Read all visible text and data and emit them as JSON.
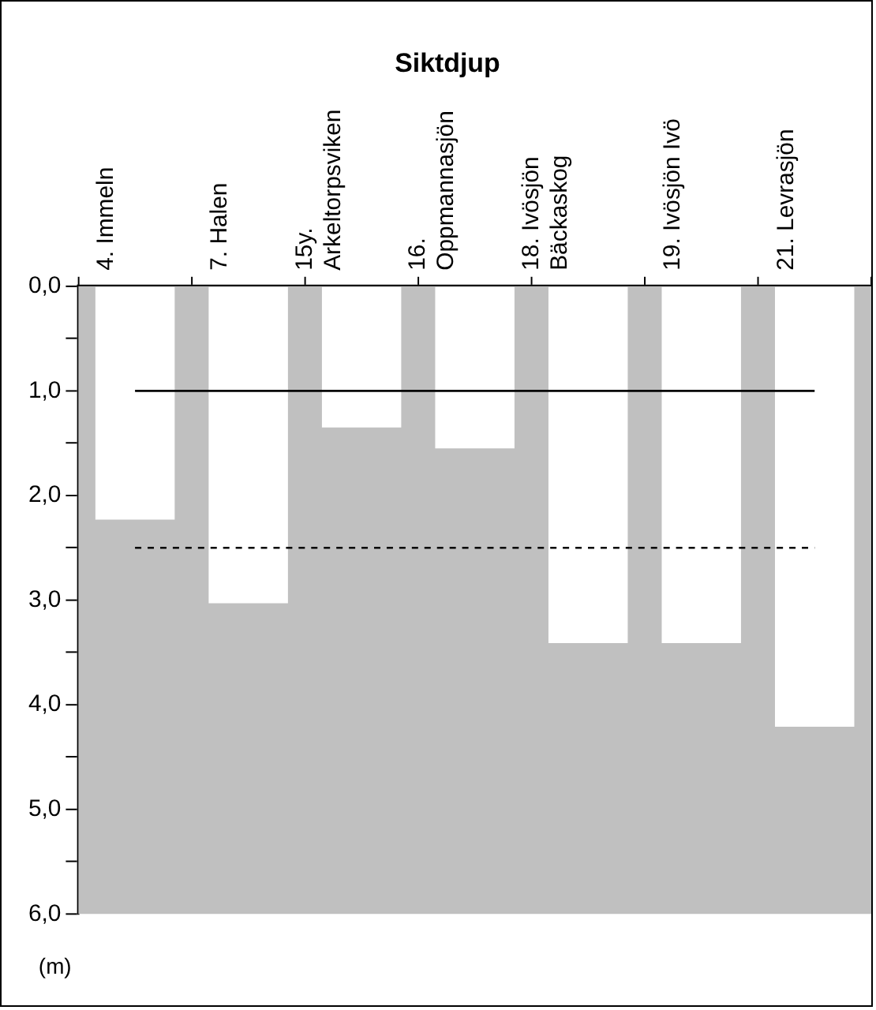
{
  "chart_data": {
    "type": "bar",
    "title": "Siktdjup",
    "ylabel": "(m)",
    "categories": [
      "4. Immeln",
      "7. Halen",
      "15y. Arkeltorpsviken",
      "16. Oppmannasjön",
      "18. Ivösjön Bäckaskog",
      "19. Ivösjön Ivö",
      "21. Levrasjön"
    ],
    "values": [
      2.23,
      3.03,
      1.35,
      1.55,
      3.41,
      3.41,
      4.21
    ],
    "color": "#ffffff",
    "ylim": [
      6,
      0
    ],
    "yticks": [
      {
        "value": 0,
        "label": "0,0"
      },
      {
        "value": 0.5,
        "label": null
      },
      {
        "value": 1,
        "label": "1,0"
      },
      {
        "value": 1.5,
        "label": null
      },
      {
        "value": 2,
        "label": "2,0"
      },
      {
        "value": 2.5,
        "label": null
      },
      {
        "value": 3,
        "label": "3,0"
      },
      {
        "value": 3.5,
        "label": null
      },
      {
        "value": 4,
        "label": "4,0"
      },
      {
        "value": 4.5,
        "label": null
      },
      {
        "value": 5,
        "label": "5,0"
      },
      {
        "value": 5.5,
        "label": null
      },
      {
        "value": 6,
        "label": "6,0"
      }
    ],
    "ref_lines": [
      {
        "axis": "y",
        "value": 1,
        "color": "#000000",
        "line_style": "solid"
      },
      {
        "axis": "y",
        "value": 2.5,
        "color": "#000000",
        "line_style": "dashed"
      }
    ],
    "grid": false,
    "legend": false
  }
}
